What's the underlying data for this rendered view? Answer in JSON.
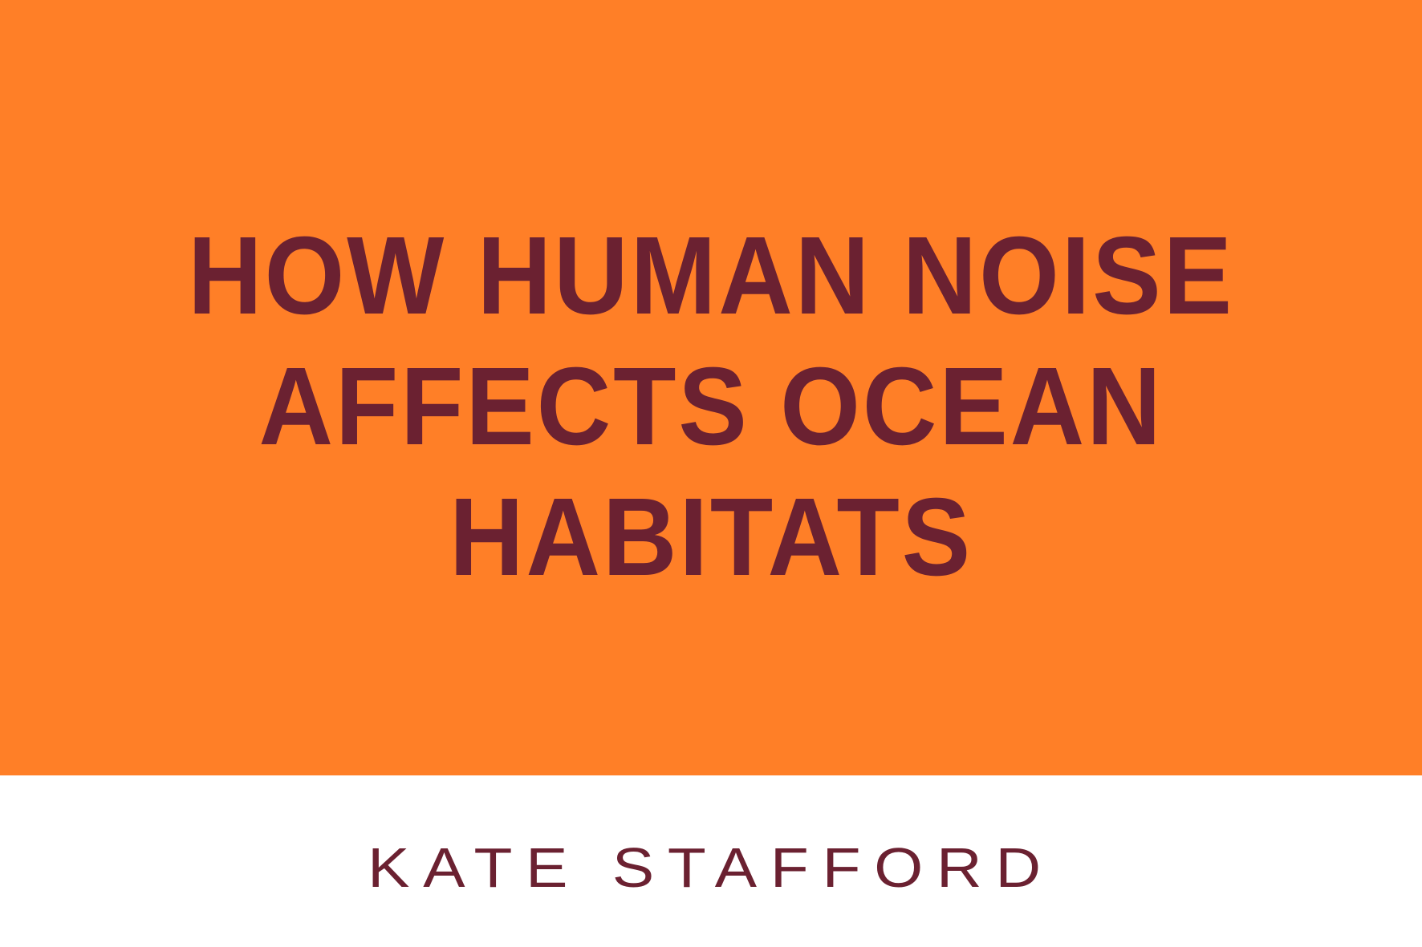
{
  "cover": {
    "title_lines": [
      "HOW HUMAN NOISE",
      "AFFECTS OCEAN",
      "HABITATS"
    ],
    "author": "KATE STAFFORD"
  },
  "colors": {
    "banner": "#FF7F27",
    "text": "#6B2131",
    "background": "#FFFFFF"
  }
}
